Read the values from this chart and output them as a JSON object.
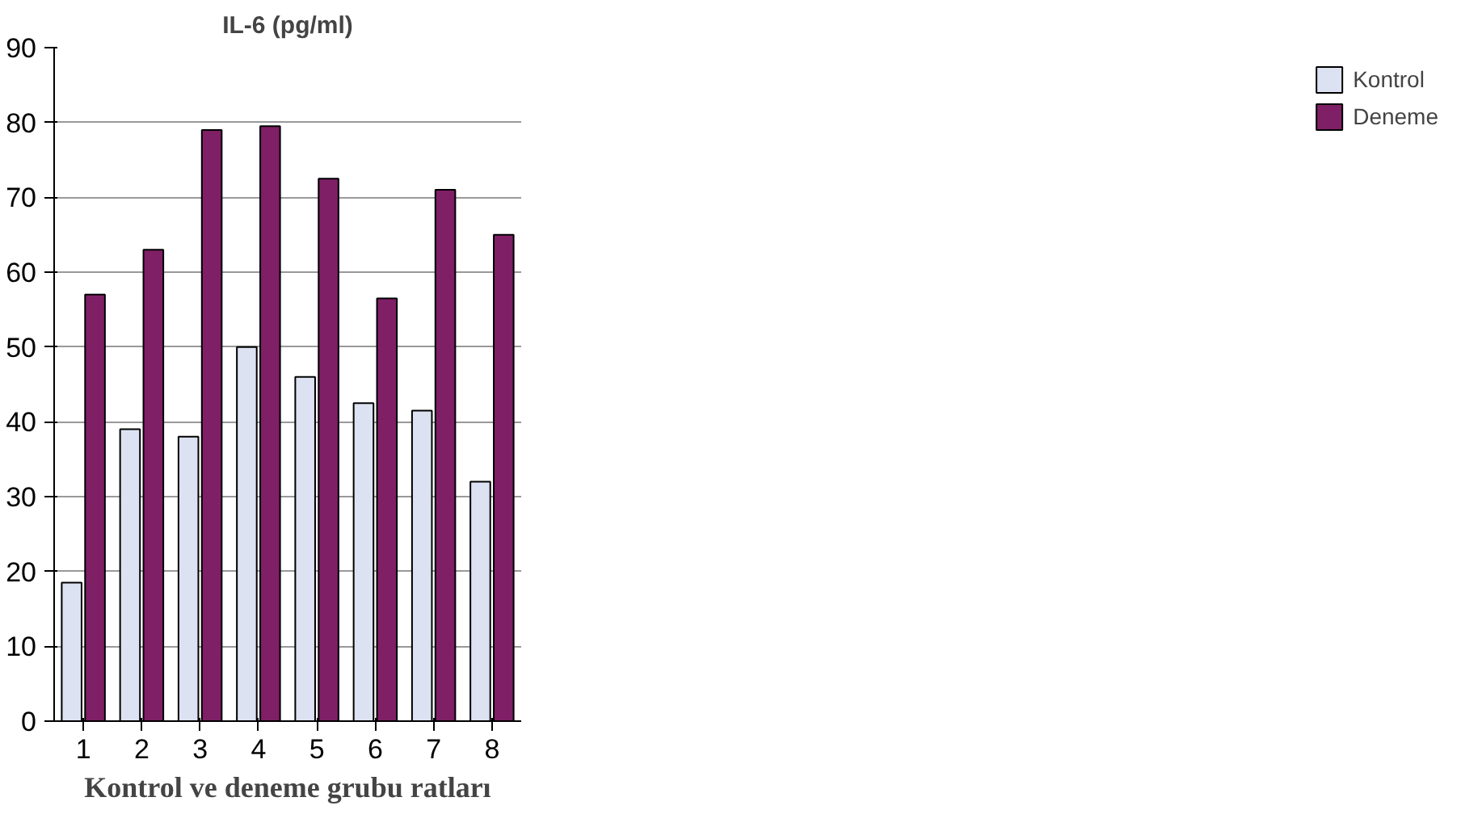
{
  "chart_data": {
    "type": "bar",
    "title": "IL-6 (pg/ml)",
    "xlabel": "Kontrol ve deneme grubu ratları",
    "categories": [
      "1",
      "2",
      "3",
      "4",
      "5",
      "6",
      "7",
      "8"
    ],
    "series": [
      {
        "name": "Kontrol",
        "color": "#dde2f2",
        "values": [
          18.5,
          39,
          38,
          50,
          46,
          42.5,
          41.5,
          32
        ]
      },
      {
        "name": "Deneme",
        "color": "#7f1f66",
        "values": [
          57,
          63,
          79,
          79.5,
          72.5,
          56.5,
          71,
          65
        ]
      }
    ],
    "ylim": [
      0,
      90
    ],
    "yticks": [
      0,
      10,
      20,
      30,
      40,
      50,
      60,
      70,
      80,
      90
    ],
    "grid": "y",
    "legend": "right"
  }
}
